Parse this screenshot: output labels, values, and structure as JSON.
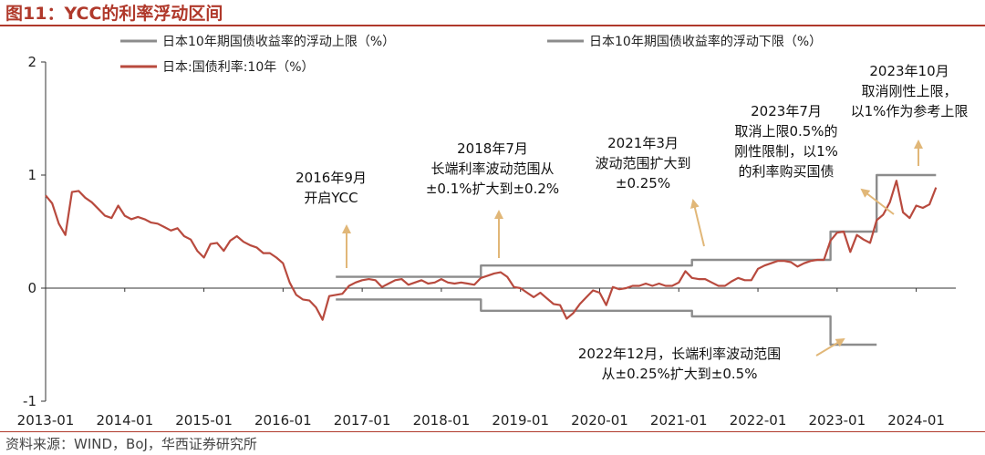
{
  "figure": {
    "title": "图11：YCC的利率浮动区间",
    "source": "资料来源：WIND，BoJ，华西证券研究所"
  },
  "colors": {
    "accent": "#b0392b",
    "series_yield": "#b84a3e",
    "series_band": "#8c8c8c",
    "annotation_arrow": "#e1b778"
  },
  "chart_data": {
    "type": "line",
    "title": "",
    "xlabel": "",
    "ylabel": "",
    "ylim": [
      -1,
      2
    ],
    "yticks": [
      "2",
      "1",
      "0",
      "-1"
    ],
    "xlim": [
      "2013-01",
      "2024-07"
    ],
    "xticks": [
      "2013-01",
      "2014-01",
      "2015-01",
      "2016-01",
      "2017-01",
      "2018-01",
      "2019-01",
      "2020-01",
      "2021-01",
      "2022-01",
      "2023-01",
      "2024-01"
    ],
    "grid": false,
    "legend_position": "top",
    "series": [
      {
        "name": "日本10年期国债收益率的浮动上限（%）",
        "color": "#8c8c8c",
        "points": [
          [
            "2016-09",
            0.1
          ],
          [
            "2018-07",
            0.1
          ],
          [
            "2018-07",
            0.2
          ],
          [
            "2021-03",
            0.2
          ],
          [
            "2021-03",
            0.25
          ],
          [
            "2022-12",
            0.25
          ],
          [
            "2022-12",
            0.5
          ],
          [
            "2023-07",
            0.5
          ],
          [
            "2023-07",
            1.0
          ],
          [
            "2024-04",
            1.0
          ]
        ]
      },
      {
        "name": "日本10年期国债收益率的浮动下限（%）",
        "color": "#8c8c8c",
        "points": [
          [
            "2016-09",
            -0.1
          ],
          [
            "2018-07",
            -0.1
          ],
          [
            "2018-07",
            -0.2
          ],
          [
            "2021-03",
            -0.2
          ],
          [
            "2021-03",
            -0.25
          ],
          [
            "2022-12",
            -0.25
          ],
          [
            "2022-12",
            -0.5
          ],
          [
            "2023-07",
            -0.5
          ]
        ]
      },
      {
        "name": "日本:国债利率:10年（%）",
        "color": "#b84a3e",
        "points": [
          [
            "2013-01",
            0.82
          ],
          [
            "2013-02",
            0.75
          ],
          [
            "2013-03",
            0.57
          ],
          [
            "2013-04",
            0.47
          ],
          [
            "2013-05",
            0.85
          ],
          [
            "2013-06",
            0.86
          ],
          [
            "2013-07",
            0.8
          ],
          [
            "2013-08",
            0.76
          ],
          [
            "2013-09",
            0.7
          ],
          [
            "2013-10",
            0.64
          ],
          [
            "2013-11",
            0.62
          ],
          [
            "2013-12",
            0.73
          ],
          [
            "2014-01",
            0.64
          ],
          [
            "2014-02",
            0.61
          ],
          [
            "2014-03",
            0.63
          ],
          [
            "2014-04",
            0.61
          ],
          [
            "2014-05",
            0.58
          ],
          [
            "2014-06",
            0.57
          ],
          [
            "2014-07",
            0.54
          ],
          [
            "2014-08",
            0.51
          ],
          [
            "2014-09",
            0.53
          ],
          [
            "2014-10",
            0.46
          ],
          [
            "2014-11",
            0.43
          ],
          [
            "2014-12",
            0.33
          ],
          [
            "2015-01",
            0.27
          ],
          [
            "2015-02",
            0.39
          ],
          [
            "2015-03",
            0.4
          ],
          [
            "2015-04",
            0.33
          ],
          [
            "2015-05",
            0.42
          ],
          [
            "2015-06",
            0.46
          ],
          [
            "2015-07",
            0.41
          ],
          [
            "2015-08",
            0.38
          ],
          [
            "2015-09",
            0.36
          ],
          [
            "2015-10",
            0.31
          ],
          [
            "2015-11",
            0.31
          ],
          [
            "2015-12",
            0.27
          ],
          [
            "2016-01",
            0.22
          ],
          [
            "2016-02",
            0.05
          ],
          [
            "2016-03",
            -0.06
          ],
          [
            "2016-04",
            -0.1
          ],
          [
            "2016-05",
            -0.11
          ],
          [
            "2016-06",
            -0.17
          ],
          [
            "2016-07",
            -0.28
          ],
          [
            "2016-08",
            -0.07
          ],
          [
            "2016-09",
            -0.06
          ],
          [
            "2016-10",
            -0.05
          ],
          [
            "2016-11",
            0.02
          ],
          [
            "2016-12",
            0.05
          ],
          [
            "2017-01",
            0.07
          ],
          [
            "2017-02",
            0.08
          ],
          [
            "2017-03",
            0.07
          ],
          [
            "2017-04",
            0.01
          ],
          [
            "2017-05",
            0.04
          ],
          [
            "2017-06",
            0.07
          ],
          [
            "2017-07",
            0.08
          ],
          [
            "2017-08",
            0.03
          ],
          [
            "2017-09",
            0.05
          ],
          [
            "2017-10",
            0.07
          ],
          [
            "2017-11",
            0.04
          ],
          [
            "2017-12",
            0.05
          ],
          [
            "2018-01",
            0.08
          ],
          [
            "2018-02",
            0.05
          ],
          [
            "2018-03",
            0.04
          ],
          [
            "2018-04",
            0.05
          ],
          [
            "2018-05",
            0.04
          ],
          [
            "2018-06",
            0.03
          ],
          [
            "2018-07",
            0.09
          ],
          [
            "2018-08",
            0.11
          ],
          [
            "2018-09",
            0.13
          ],
          [
            "2018-10",
            0.14
          ],
          [
            "2018-11",
            0.1
          ],
          [
            "2018-12",
            0.01
          ],
          [
            "2019-01",
            0.0
          ],
          [
            "2019-02",
            -0.04
          ],
          [
            "2019-03",
            -0.08
          ],
          [
            "2019-04",
            -0.04
          ],
          [
            "2019-05",
            -0.09
          ],
          [
            "2019-06",
            -0.14
          ],
          [
            "2019-07",
            -0.15
          ],
          [
            "2019-08",
            -0.27
          ],
          [
            "2019-09",
            -0.22
          ],
          [
            "2019-10",
            -0.14
          ],
          [
            "2019-11",
            -0.08
          ],
          [
            "2019-12",
            -0.02
          ],
          [
            "2020-01",
            -0.04
          ],
          [
            "2020-02",
            -0.15
          ],
          [
            "2020-03",
            0.01
          ],
          [
            "2020-04",
            -0.01
          ],
          [
            "2020-05",
            0.0
          ],
          [
            "2020-06",
            0.02
          ],
          [
            "2020-07",
            0.02
          ],
          [
            "2020-08",
            0.04
          ],
          [
            "2020-09",
            0.02
          ],
          [
            "2020-10",
            0.04
          ],
          [
            "2020-11",
            0.02
          ],
          [
            "2020-12",
            0.02
          ],
          [
            "2021-01",
            0.05
          ],
          [
            "2021-02",
            0.15
          ],
          [
            "2021-03",
            0.09
          ],
          [
            "2021-04",
            0.08
          ],
          [
            "2021-05",
            0.08
          ],
          [
            "2021-06",
            0.05
          ],
          [
            "2021-07",
            0.02
          ],
          [
            "2021-08",
            0.02
          ],
          [
            "2021-09",
            0.06
          ],
          [
            "2021-10",
            0.09
          ],
          [
            "2021-11",
            0.07
          ],
          [
            "2021-12",
            0.07
          ],
          [
            "2022-01",
            0.17
          ],
          [
            "2022-02",
            0.2
          ],
          [
            "2022-03",
            0.22
          ],
          [
            "2022-04",
            0.24
          ],
          [
            "2022-05",
            0.24
          ],
          [
            "2022-06",
            0.23
          ],
          [
            "2022-07",
            0.19
          ],
          [
            "2022-08",
            0.22
          ],
          [
            "2022-09",
            0.24
          ],
          [
            "2022-10",
            0.25
          ],
          [
            "2022-11",
            0.25
          ],
          [
            "2022-12",
            0.42
          ],
          [
            "2023-01",
            0.49
          ],
          [
            "2023-02",
            0.5
          ],
          [
            "2023-03",
            0.32
          ],
          [
            "2023-04",
            0.47
          ],
          [
            "2023-05",
            0.43
          ],
          [
            "2023-06",
            0.4
          ],
          [
            "2023-07",
            0.6
          ],
          [
            "2023-08",
            0.65
          ],
          [
            "2023-09",
            0.76
          ],
          [
            "2023-10",
            0.95
          ],
          [
            "2023-11",
            0.67
          ],
          [
            "2023-12",
            0.62
          ],
          [
            "2024-01",
            0.73
          ],
          [
            "2024-02",
            0.71
          ],
          [
            "2024-03",
            0.74
          ],
          [
            "2024-04",
            0.89
          ]
        ]
      }
    ],
    "annotations": [
      {
        "lines": [
          "2016年9月",
          "开启YCC"
        ],
        "points_to": [
          "2016-09",
          0.1
        ]
      },
      {
        "lines": [
          "2018年7月",
          "长端利率波动范围从",
          "±0.1%扩大到±0.2%"
        ],
        "points_to": [
          "2018-07",
          0.2
        ]
      },
      {
        "lines": [
          "2021年3月",
          "波动范围扩大到",
          "±0.25%"
        ],
        "points_to": [
          "2021-03",
          0.25
        ]
      },
      {
        "lines": [
          "2022年12月，长端利率波动范围",
          "从±0.25%扩大到±0.5%"
        ],
        "points_to": [
          "2022-12",
          -0.5
        ]
      },
      {
        "lines": [
          "2023年7月",
          "取消上限0.5%的",
          "刚性限制，以1%",
          "的利率购买国债"
        ],
        "points_to": [
          "2023-07",
          0.5
        ]
      },
      {
        "lines": [
          "2023年10月",
          "取消刚性上限，",
          "以1%作为参考上限"
        ],
        "points_to": [
          "2023-10",
          1.0
        ]
      }
    ]
  }
}
